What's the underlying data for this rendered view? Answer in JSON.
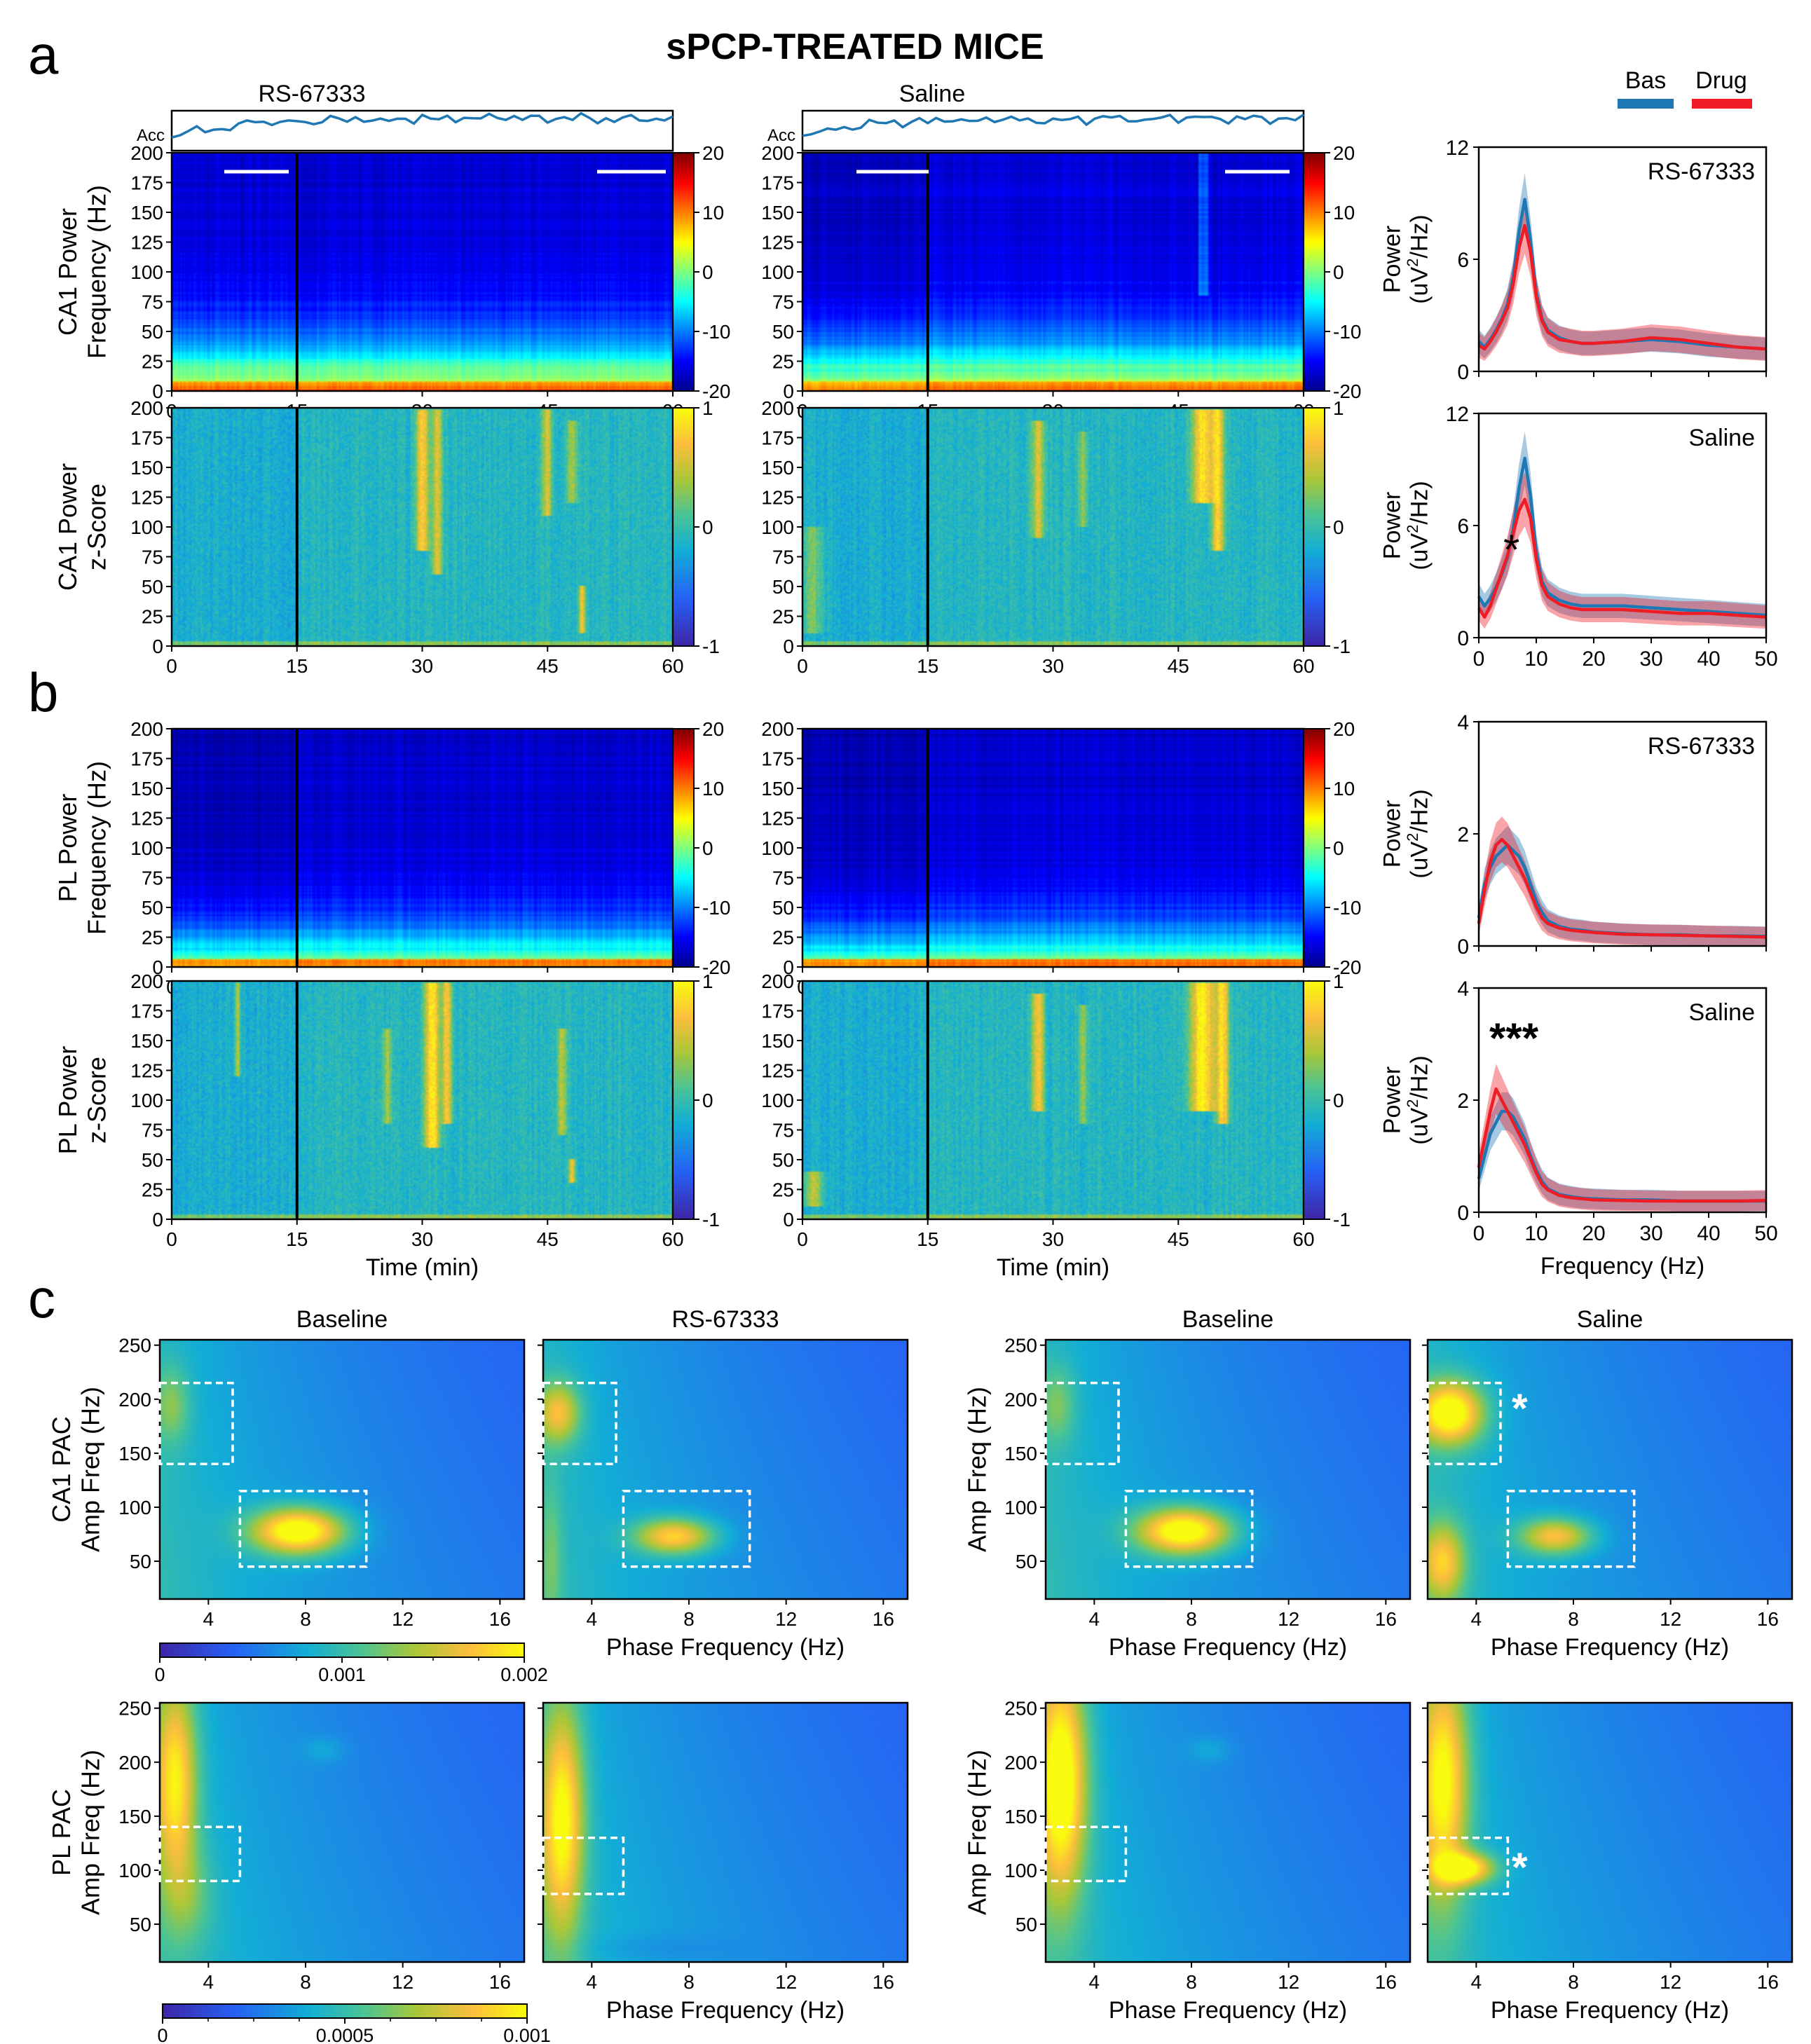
{
  "title": "sPCP-TREATED MICE",
  "panel_labels": [
    "a",
    "b",
    "c"
  ],
  "legend": {
    "items": [
      {
        "name": "Bas",
        "color": "#1f77b4"
      },
      {
        "name": "Drug",
        "color": "#ee1c25"
      }
    ],
    "placement": "top-right"
  },
  "colors": {
    "bas": "#1f77b4",
    "drug": "#ee1c25",
    "box": "#ffffff"
  },
  "chart_data": [
    {
      "id": "a-spectrogram-rs",
      "type": "heatmap",
      "column_title": "RS-67333",
      "trace_label": "Acc",
      "ylabel": "CA1 Power\nFrequency (Hz)",
      "xlim": [
        0,
        60
      ],
      "ylim": [
        0,
        200
      ],
      "xticks": [
        "0",
        "15",
        "30",
        "45",
        "60"
      ],
      "yticks": [
        "0",
        "25",
        "50",
        "75",
        "100",
        "125",
        "150",
        "175",
        "200"
      ],
      "colorbar": {
        "ticks": [
          "20",
          "10",
          "0",
          "-10",
          "-20"
        ],
        "range": [
          -20,
          20
        ],
        "colormap": "jet"
      },
      "injection_marker_min": 15
    },
    {
      "id": "a-spectrogram-saline",
      "type": "heatmap",
      "column_title": "Saline",
      "trace_label": "Acc",
      "xlim": [
        0,
        60
      ],
      "ylim": [
        0,
        200
      ],
      "xticks": [
        "0",
        "15",
        "30",
        "45",
        "60"
      ],
      "yticks": [
        "0",
        "25",
        "50",
        "75",
        "100",
        "125",
        "150",
        "175",
        "200"
      ],
      "colorbar": {
        "ticks": [
          "20",
          "10",
          "0",
          "-10",
          "-20"
        ],
        "range": [
          -20,
          20
        ],
        "colormap": "jet"
      },
      "injection_marker_min": 15
    },
    {
      "id": "a-zscore-rs",
      "type": "heatmap",
      "ylabel": "CA1 Power\nz-Score",
      "xlim": [
        0,
        60
      ],
      "ylim": [
        0,
        200
      ],
      "xticks": [
        "0",
        "15",
        "30",
        "45",
        "60"
      ],
      "yticks": [
        "0",
        "25",
        "50",
        "75",
        "100",
        "125",
        "150",
        "175",
        "200"
      ],
      "colorbar": {
        "ticks": [
          "1",
          "0",
          "-1"
        ],
        "range": [
          -1,
          1
        ],
        "colormap": "parula"
      }
    },
    {
      "id": "a-zscore-saline",
      "type": "heatmap",
      "xlim": [
        0,
        60
      ],
      "ylim": [
        0,
        200
      ],
      "xticks": [
        "0",
        "15",
        "30",
        "45",
        "60"
      ],
      "yticks": [
        "0",
        "25",
        "50",
        "75",
        "100",
        "125",
        "150",
        "175",
        "200"
      ],
      "colorbar": {
        "ticks": [
          "1",
          "0",
          "-1"
        ],
        "range": [
          -1,
          1
        ],
        "colormap": "parula"
      }
    },
    {
      "id": "a-psd-rs",
      "type": "line",
      "title": "RS-67333",
      "ylabel": "Power\n(uV2/Hz)",
      "xlim": [
        0,
        50
      ],
      "ylim": [
        0,
        12
      ],
      "yticks": [
        "0",
        "6",
        "12"
      ],
      "series": [
        {
          "name": "Bas",
          "x": [
            0,
            1,
            2,
            3,
            4,
            5,
            6,
            7,
            8,
            9,
            10,
            11,
            12,
            14,
            16,
            18,
            20,
            25,
            30,
            35,
            40,
            45,
            50
          ],
          "y": [
            1.6,
            1.3,
            1.7,
            2.2,
            2.8,
            3.6,
            5.0,
            7.5,
            9.2,
            7.0,
            4.2,
            2.8,
            2.2,
            1.8,
            1.6,
            1.5,
            1.5,
            1.6,
            1.7,
            1.6,
            1.4,
            1.3,
            1.2
          ]
        },
        {
          "name": "Drug",
          "x": [
            0,
            1,
            2,
            3,
            4,
            5,
            6,
            7,
            8,
            9,
            10,
            11,
            12,
            14,
            16,
            18,
            20,
            25,
            30,
            35,
            40,
            45,
            50
          ],
          "y": [
            1.4,
            1.2,
            1.6,
            2.1,
            2.7,
            3.4,
            4.7,
            6.6,
            7.8,
            6.4,
            4.0,
            2.7,
            2.1,
            1.7,
            1.6,
            1.5,
            1.5,
            1.6,
            1.8,
            1.7,
            1.5,
            1.3,
            1.2
          ]
        }
      ]
    },
    {
      "id": "a-psd-saline",
      "type": "line",
      "title": "Saline",
      "ylabel": "Power\n(uV2/Hz)",
      "xlim": [
        0,
        50
      ],
      "ylim": [
        0,
        12
      ],
      "yticks": [
        "0",
        "6",
        "12"
      ],
      "xticks": [
        "0",
        "10",
        "20",
        "30",
        "40",
        "50"
      ],
      "annotation": "*",
      "series": [
        {
          "name": "Bas",
          "x": [
            0,
            1,
            2,
            3,
            4,
            5,
            6,
            7,
            8,
            9,
            10,
            11,
            12,
            14,
            16,
            18,
            20,
            25,
            30,
            35,
            40,
            45,
            50
          ],
          "y": [
            2.2,
            1.7,
            2.1,
            2.7,
            3.4,
            4.3,
            5.8,
            8.0,
            9.6,
            7.6,
            4.6,
            3.0,
            2.4,
            2.0,
            1.8,
            1.7,
            1.7,
            1.7,
            1.6,
            1.5,
            1.4,
            1.3,
            1.2
          ]
        },
        {
          "name": "Drug",
          "x": [
            0,
            1,
            2,
            3,
            4,
            5,
            6,
            7,
            8,
            9,
            10,
            11,
            12,
            14,
            16,
            18,
            20,
            25,
            30,
            35,
            40,
            45,
            50
          ],
          "y": [
            1.6,
            1.1,
            1.7,
            2.6,
            3.5,
            4.4,
            5.6,
            6.8,
            7.4,
            6.4,
            4.2,
            2.8,
            2.2,
            1.8,
            1.6,
            1.5,
            1.5,
            1.5,
            1.4,
            1.3,
            1.3,
            1.2,
            1.1
          ]
        }
      ]
    },
    {
      "id": "b-spectrogram-rs",
      "type": "heatmap",
      "ylabel": "PL Power\nFrequency (Hz)",
      "xlim": [
        0,
        60
      ],
      "ylim": [
        0,
        200
      ],
      "xticks": [
        "0",
        "15",
        "30",
        "45",
        "60"
      ],
      "yticks": [
        "0",
        "25",
        "50",
        "75",
        "100",
        "125",
        "150",
        "175",
        "200"
      ],
      "colorbar": {
        "ticks": [
          "20",
          "10",
          "0",
          "-10",
          "-20"
        ],
        "range": [
          -20,
          20
        ],
        "colormap": "jet"
      }
    },
    {
      "id": "b-spectrogram-saline",
      "type": "heatmap",
      "xlim": [
        0,
        60
      ],
      "ylim": [
        0,
        200
      ],
      "xticks": [
        "0",
        "15",
        "30",
        "45",
        "60"
      ],
      "yticks": [
        "0",
        "25",
        "50",
        "75",
        "100",
        "125",
        "150",
        "175",
        "200"
      ],
      "colorbar": {
        "ticks": [
          "20",
          "10",
          "0",
          "-10",
          "-20"
        ],
        "range": [
          -20,
          20
        ],
        "colormap": "jet"
      }
    },
    {
      "id": "b-zscore-rs",
      "type": "heatmap",
      "ylabel": "PL Power\nz-Score",
      "xlabel": "Time (min)",
      "xlim": [
        0,
        60
      ],
      "ylim": [
        0,
        200
      ],
      "xticks": [
        "0",
        "15",
        "30",
        "45",
        "60"
      ],
      "yticks": [
        "0",
        "25",
        "50",
        "75",
        "100",
        "125",
        "150",
        "175",
        "200"
      ],
      "colorbar": {
        "ticks": [
          "1",
          "0",
          "-1"
        ],
        "range": [
          -1,
          1
        ],
        "colormap": "parula"
      }
    },
    {
      "id": "b-zscore-saline",
      "type": "heatmap",
      "xlabel": "Time (min)",
      "xlim": [
        0,
        60
      ],
      "ylim": [
        0,
        200
      ],
      "xticks": [
        "0",
        "15",
        "30",
        "45",
        "60"
      ],
      "yticks": [
        "0",
        "25",
        "50",
        "75",
        "100",
        "125",
        "150",
        "175",
        "200"
      ],
      "colorbar": {
        "ticks": [
          "1",
          "0",
          "-1"
        ],
        "range": [
          -1,
          1
        ],
        "colormap": "parula"
      }
    },
    {
      "id": "b-psd-rs",
      "type": "line",
      "title": "RS-67333",
      "ylabel": "Power\n(uV2/Hz)",
      "xlim": [
        0,
        50
      ],
      "ylim": [
        0,
        4
      ],
      "yticks": [
        "0",
        "2",
        "4"
      ],
      "series": [
        {
          "name": "Bas",
          "x": [
            0,
            1,
            2,
            3,
            4,
            5,
            6,
            7,
            8,
            9,
            10,
            11,
            12,
            14,
            16,
            18,
            20,
            25,
            30,
            35,
            40,
            45,
            50
          ],
          "y": [
            0.5,
            1.1,
            1.4,
            1.6,
            1.7,
            1.8,
            1.7,
            1.6,
            1.4,
            1.1,
            0.8,
            0.6,
            0.45,
            0.35,
            0.3,
            0.28,
            0.25,
            0.22,
            0.2,
            0.2,
            0.18,
            0.18,
            0.17
          ]
        },
        {
          "name": "Drug",
          "x": [
            0,
            1,
            2,
            3,
            4,
            5,
            6,
            7,
            8,
            9,
            10,
            11,
            12,
            14,
            16,
            18,
            20,
            25,
            30,
            35,
            40,
            45,
            50
          ],
          "y": [
            0.4,
            1.0,
            1.5,
            1.8,
            1.9,
            1.8,
            1.6,
            1.4,
            1.2,
            0.95,
            0.7,
            0.5,
            0.4,
            0.32,
            0.28,
            0.26,
            0.24,
            0.21,
            0.2,
            0.19,
            0.18,
            0.17,
            0.16
          ]
        }
      ]
    },
    {
      "id": "b-psd-saline",
      "type": "line",
      "title": "Saline",
      "ylabel": "Power\n(uV2/Hz)",
      "xlabel": "Frequency (Hz)",
      "xlim": [
        0,
        50
      ],
      "ylim": [
        0,
        4
      ],
      "yticks": [
        "0",
        "2",
        "4"
      ],
      "xticks": [
        "0",
        "10",
        "20",
        "30",
        "40",
        "50"
      ],
      "annotation": "***",
      "series": [
        {
          "name": "Bas",
          "x": [
            0,
            1,
            2,
            3,
            4,
            5,
            6,
            7,
            8,
            9,
            10,
            11,
            12,
            14,
            16,
            18,
            20,
            25,
            30,
            35,
            40,
            45,
            50
          ],
          "y": [
            0.6,
            1.0,
            1.4,
            1.6,
            1.8,
            1.8,
            1.7,
            1.5,
            1.3,
            1.0,
            0.75,
            0.55,
            0.42,
            0.32,
            0.28,
            0.25,
            0.24,
            0.22,
            0.22,
            0.2,
            0.2,
            0.2,
            0.2
          ]
        },
        {
          "name": "Drug",
          "x": [
            0,
            1,
            2,
            3,
            4,
            5,
            6,
            7,
            8,
            9,
            10,
            11,
            12,
            14,
            16,
            18,
            20,
            25,
            30,
            35,
            40,
            45,
            50
          ],
          "y": [
            0.8,
            1.3,
            1.8,
            2.2,
            2.0,
            1.8,
            1.6,
            1.4,
            1.2,
            0.95,
            0.7,
            0.5,
            0.4,
            0.3,
            0.26,
            0.24,
            0.22,
            0.21,
            0.2,
            0.2,
            0.2,
            0.2,
            0.21
          ]
        }
      ]
    },
    {
      "id": "c-ca1-baseline-rs",
      "type": "heatmap",
      "title": "Baseline",
      "ylabel": "CA1 PAC\nAmp Freq (Hz)",
      "xlim": [
        2,
        17
      ],
      "ylim": [
        15,
        255
      ],
      "xticks": [
        "4",
        "8",
        "12",
        "16"
      ],
      "yticks": [
        "50",
        "100",
        "150",
        "200",
        "250"
      ],
      "boxes": [
        {
          "x": [
            2,
            5
          ],
          "y": [
            140,
            215
          ]
        },
        {
          "x": [
            5.3,
            10.5
          ],
          "y": [
            45,
            115
          ]
        }
      ],
      "colorbar": {
        "ticks": [
          "0",
          "0.001",
          "0.002"
        ],
        "range": [
          0,
          0.002
        ],
        "colormap": "parula"
      }
    },
    {
      "id": "c-ca1-rs",
      "type": "heatmap",
      "title": "RS-67333",
      "xlabel": "Phase Frequency (Hz)",
      "xlim": [
        2,
        17
      ],
      "ylim": [
        15,
        255
      ],
      "xticks": [
        "4",
        "8",
        "12",
        "16"
      ],
      "boxes": [
        {
          "x": [
            2,
            5
          ],
          "y": [
            140,
            215
          ]
        },
        {
          "x": [
            5.3,
            10.5
          ],
          "y": [
            45,
            115
          ]
        }
      ]
    },
    {
      "id": "c-ca1-baseline-saline",
      "type": "heatmap",
      "title": "Baseline",
      "ylabel": "Amp Freq (Hz)",
      "xlabel": "Phase Frequency (Hz)",
      "xlim": [
        2,
        17
      ],
      "ylim": [
        15,
        255
      ],
      "xticks": [
        "4",
        "8",
        "12",
        "16"
      ],
      "yticks": [
        "50",
        "100",
        "150",
        "200",
        "250"
      ],
      "boxes": [
        {
          "x": [
            2,
            5
          ],
          "y": [
            140,
            215
          ]
        },
        {
          "x": [
            5.3,
            10.5
          ],
          "y": [
            45,
            115
          ]
        }
      ]
    },
    {
      "id": "c-ca1-saline",
      "type": "heatmap",
      "title": "Saline",
      "xlabel": "Phase Frequency (Hz)",
      "xlim": [
        2,
        17
      ],
      "ylim": [
        15,
        255
      ],
      "xticks": [
        "4",
        "8",
        "12",
        "16"
      ],
      "annotation": "*",
      "boxes": [
        {
          "x": [
            2,
            5
          ],
          "y": [
            140,
            215
          ]
        },
        {
          "x": [
            5.3,
            10.5
          ],
          "y": [
            45,
            115
          ]
        }
      ]
    },
    {
      "id": "c-pl-baseline-rs",
      "type": "heatmap",
      "ylabel": "PL PAC\nAmp Freq (Hz)",
      "xlim": [
        2,
        17
      ],
      "ylim": [
        15,
        255
      ],
      "xticks": [
        "4",
        "8",
        "12",
        "16"
      ],
      "yticks": [
        "50",
        "100",
        "150",
        "200",
        "250"
      ],
      "boxes": [
        {
          "x": [
            2,
            5.3
          ],
          "y": [
            90,
            140
          ]
        }
      ],
      "colorbar": {
        "ticks": [
          "0",
          "0.0005",
          "0.001"
        ],
        "range": [
          0,
          0.001
        ],
        "colormap": "parula"
      }
    },
    {
      "id": "c-pl-rs",
      "type": "heatmap",
      "xlabel": "Phase Frequency (Hz)",
      "xlim": [
        2,
        17
      ],
      "ylim": [
        15,
        255
      ],
      "xticks": [
        "4",
        "8",
        "12",
        "16"
      ],
      "boxes": [
        {
          "x": [
            2,
            5.3
          ],
          "y": [
            78,
            130
          ]
        }
      ]
    },
    {
      "id": "c-pl-baseline-saline",
      "type": "heatmap",
      "ylabel": "Amp Freq (Hz)",
      "xlabel": "Phase Frequency (Hz)",
      "xlim": [
        2,
        17
      ],
      "ylim": [
        15,
        255
      ],
      "xticks": [
        "4",
        "8",
        "12",
        "16"
      ],
      "yticks": [
        "50",
        "100",
        "150",
        "200",
        "250"
      ],
      "boxes": [
        {
          "x": [
            2,
            5.3
          ],
          "y": [
            90,
            140
          ]
        }
      ]
    },
    {
      "id": "c-pl-saline",
      "type": "heatmap",
      "xlabel": "Phase Frequency (Hz)",
      "xlim": [
        2,
        17
      ],
      "ylim": [
        15,
        255
      ],
      "xticks": [
        "4",
        "8",
        "12",
        "16"
      ],
      "annotation": "*",
      "boxes": [
        {
          "x": [
            2,
            5.3
          ],
          "y": [
            78,
            130
          ]
        }
      ]
    }
  ]
}
